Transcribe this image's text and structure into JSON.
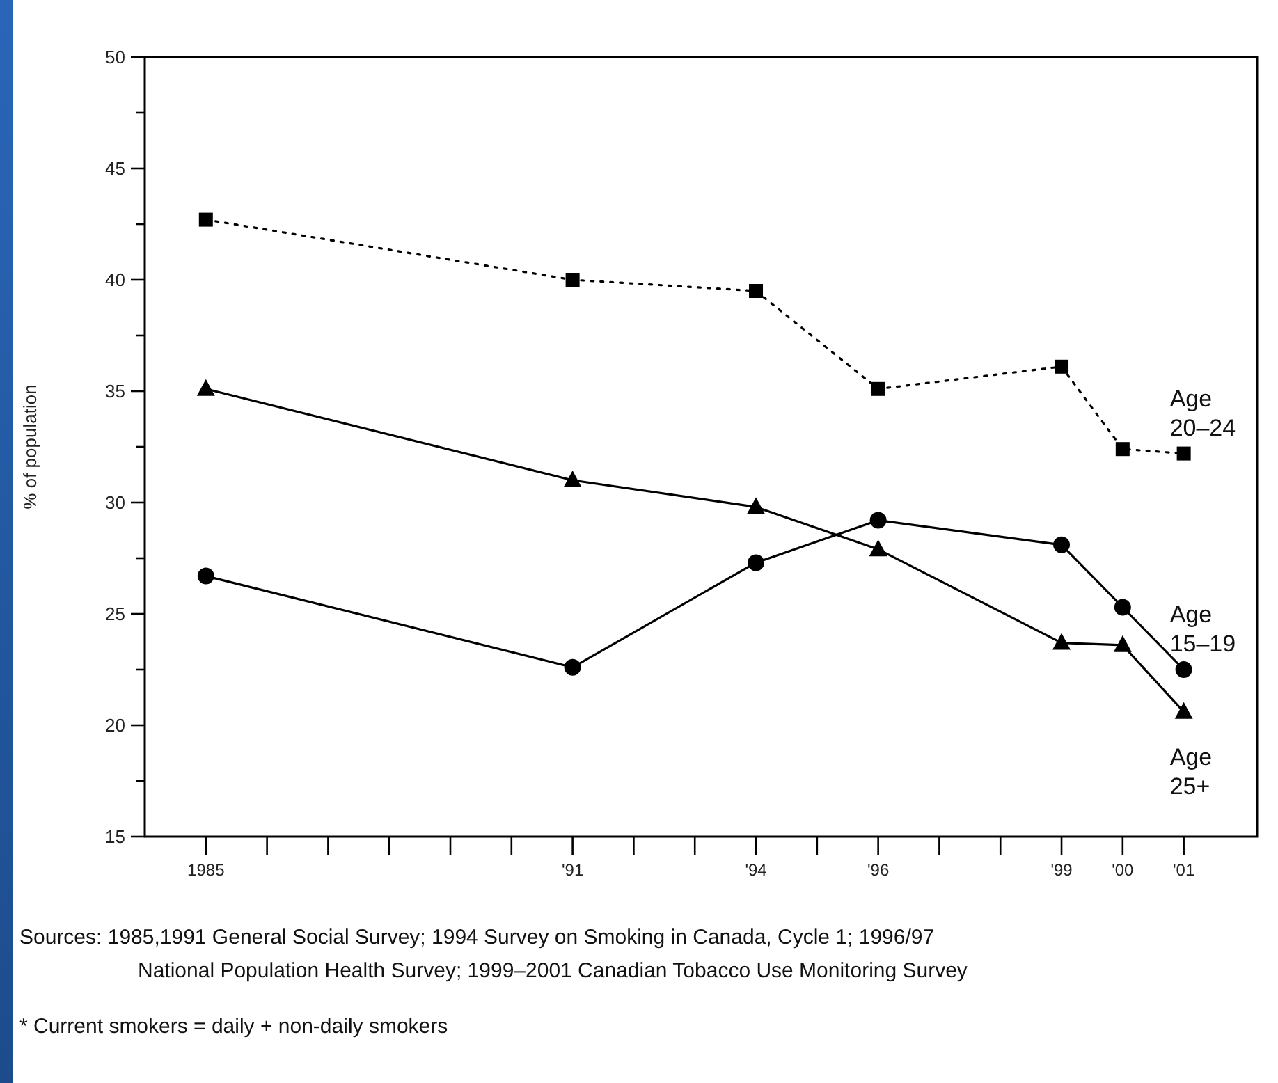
{
  "chart_data": {
    "type": "line",
    "ylabel": "% of population",
    "x": [
      1985,
      1991,
      1994,
      1996,
      1999,
      2000,
      2001
    ],
    "xlim": [
      1984,
      2002.2
    ],
    "xticks": [
      {
        "value": 1985,
        "label": "1985"
      },
      {
        "value": 1986,
        "label": null
      },
      {
        "value": 1987,
        "label": null
      },
      {
        "value": 1988,
        "label": null
      },
      {
        "value": 1989,
        "label": null
      },
      {
        "value": 1990,
        "label": null
      },
      {
        "value": 1991,
        "label": "'91"
      },
      {
        "value": 1992,
        "label": null
      },
      {
        "value": 1993,
        "label": null
      },
      {
        "value": 1994,
        "label": "'94"
      },
      {
        "value": 1995,
        "label": null
      },
      {
        "value": 1996,
        "label": "'96"
      },
      {
        "value": 1997,
        "label": null
      },
      {
        "value": 1998,
        "label": null
      },
      {
        "value": 1999,
        "label": "'99"
      },
      {
        "value": 2000,
        "label": "'00"
      },
      {
        "value": 2001,
        "label": "'01"
      }
    ],
    "ylim": [
      15,
      50
    ],
    "yticks": [
      15,
      {
        "value": 17.5,
        "label": null
      },
      20,
      {
        "value": 22.5,
        "label": null
      },
      25,
      {
        "value": 27.5,
        "label": null
      },
      30,
      {
        "value": 32.5,
        "label": null
      },
      35,
      {
        "value": 37.5,
        "label": null
      },
      40,
      {
        "value": 42.5,
        "label": null
      },
      45,
      {
        "value": 47.5,
        "label": null
      },
      50
    ],
    "series": [
      {
        "name": "Age 20–24",
        "color": "#000000",
        "marker": "square",
        "line_style": "dotted",
        "values": [
          42.7,
          40.0,
          39.5,
          35.1,
          36.1,
          32.4,
          32.2
        ]
      },
      {
        "name": "Age 15–19",
        "color": "#000000",
        "marker": "circle",
        "line_style": "solid",
        "values": [
          26.7,
          22.6,
          27.3,
          29.2,
          28.1,
          25.3,
          22.5
        ]
      },
      {
        "name": "Age 25+",
        "color": "#000000",
        "marker": "triangle",
        "line_style": "solid",
        "values": [
          35.1,
          31.0,
          29.8,
          27.9,
          23.7,
          23.6,
          20.6
        ]
      }
    ],
    "annotations": [
      "Sources: 1985,1991 General Social Survey; 1994 Survey on Smoking in Canada, Cycle 1; 1996/97\nNational Population Health Survey; 1999–2001 Canadian Tobacco Use Monitoring Survey",
      "* Current smokers = daily + non-daily smokers"
    ]
  }
}
